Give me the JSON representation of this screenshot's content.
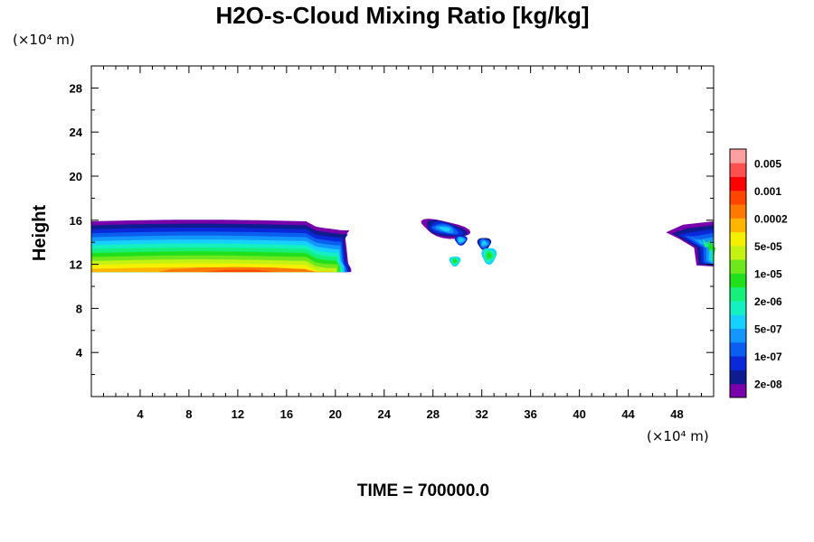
{
  "chart_data": {
    "type": "heatmap",
    "title": "H2O-s-Cloud Mixing Ratio [kg/kg]",
    "x_unit": "(×10⁴ m)",
    "y_unit": "(×10⁴ m)",
    "ylabel": "Height",
    "footer": "TIME = 700000.0",
    "xlim": [
      0,
      51
    ],
    "ylim": [
      0,
      30
    ],
    "x_ticks": [
      4,
      8,
      12,
      16,
      20,
      24,
      28,
      32,
      36,
      40,
      44,
      48
    ],
    "y_ticks": [
      4,
      8,
      12,
      16,
      20,
      24,
      28
    ],
    "grid": false,
    "legend_position": "right",
    "colorbar": {
      "colors": [
        "#7700aa",
        "#0f1c90",
        "#0a28d8",
        "#0a5ef0",
        "#1496ff",
        "#16d0ff",
        "#14f0bf",
        "#16f07a",
        "#20e01c",
        "#6ee81c",
        "#c4f214",
        "#f5f000",
        "#ffb400",
        "#ff7800",
        "#ff4600",
        "#ff0000",
        "#ff5050",
        "#ffa0a0"
      ],
      "labels": [
        "2e-08",
        "1e-07",
        "5e-07",
        "2e-06",
        "1e-05",
        "5e-05",
        "0.0002",
        "0.001",
        "0.005"
      ]
    },
    "regions": [
      {
        "name": "main cloud layer",
        "x_range": [
          0,
          21.2
        ],
        "y_range": [
          11.2,
          16.2
        ],
        "max_level": "2e-04 to 1e-03",
        "max_at": [
          12,
          11.5
        ]
      },
      {
        "name": "cloud patch near x=28-31",
        "x_range": [
          27,
          31
        ],
        "y_range": [
          14,
          16.2
        ],
        "max_level": "5e-07 to 2e-06"
      },
      {
        "name": "cloud patch near x=29.8",
        "x_range": [
          29.3,
          30.3
        ],
        "y_range": [
          11.8,
          12.8
        ],
        "max_level": "1e-05 to 5e-05"
      },
      {
        "name": "cloud patch near x=32-33",
        "x_range": [
          31.7,
          33.3
        ],
        "y_range": [
          12.0,
          14.5
        ],
        "max_level": "1e-05 to 5e-05"
      },
      {
        "name": "cloud patch near x=47-51",
        "x_range": [
          47,
          51
        ],
        "y_range": [
          11.8,
          16
        ],
        "max_level": "1e-05 to 5e-05"
      }
    ]
  }
}
